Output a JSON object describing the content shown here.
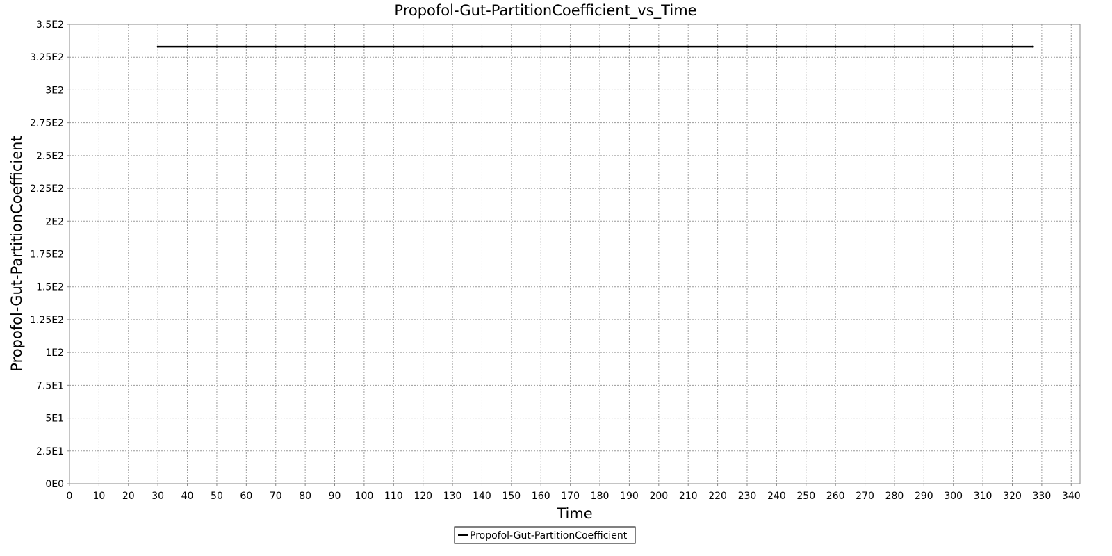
{
  "chart_data": {
    "type": "line",
    "title": "Propofol-Gut-PartitionCoefficient_vs_Time",
    "xlabel": "Time",
    "ylabel": "Propofol-Gut-PartitionCoefficient",
    "xlim": [
      0,
      343
    ],
    "ylim": [
      0,
      350
    ],
    "xticks": [
      0,
      10,
      20,
      30,
      40,
      50,
      60,
      70,
      80,
      90,
      100,
      110,
      120,
      130,
      140,
      150,
      160,
      170,
      180,
      190,
      200,
      210,
      220,
      230,
      240,
      250,
      260,
      270,
      280,
      290,
      300,
      310,
      320,
      330,
      340
    ],
    "xtick_labels": [
      "0",
      "10",
      "20",
      "30",
      "40",
      "50",
      "60",
      "70",
      "80",
      "90",
      "100",
      "110",
      "120",
      "130",
      "140",
      "150",
      "160",
      "170",
      "180",
      "190",
      "200",
      "210",
      "220",
      "230",
      "240",
      "250",
      "260",
      "270",
      "280",
      "290",
      "300",
      "310",
      "320",
      "330",
      "340"
    ],
    "yticks": [
      0,
      25,
      50,
      75,
      100,
      125,
      150,
      175,
      200,
      225,
      250,
      275,
      300,
      325,
      350
    ],
    "ytick_labels": [
      "0E0",
      "2.5E1",
      "5E1",
      "7.5E1",
      "1E2",
      "1.25E2",
      "1.5E2",
      "1.75E2",
      "2E2",
      "2.25E2",
      "2.5E2",
      "2.75E2",
      "3E2",
      "3.25E2",
      "3.5E2"
    ],
    "grid": true,
    "legend_position": "bottom-center",
    "series": [
      {
        "name": "Propofol-Gut-PartitionCoefficient",
        "color": "#000000",
        "x": [
          30,
          40,
          50,
          60,
          70,
          80,
          90,
          100,
          110,
          120,
          130,
          140,
          150,
          160,
          170,
          180,
          190,
          200,
          210,
          220,
          230,
          240,
          250,
          260,
          270,
          280,
          290,
          300,
          310,
          320,
          327
        ],
        "y": [
          333,
          333,
          333,
          333,
          333,
          333,
          333,
          333,
          333,
          333,
          333,
          333,
          333,
          333,
          333,
          333,
          333,
          333,
          333,
          333,
          333,
          333,
          333,
          333,
          333,
          333,
          333,
          333,
          333,
          333,
          333
        ]
      }
    ]
  }
}
